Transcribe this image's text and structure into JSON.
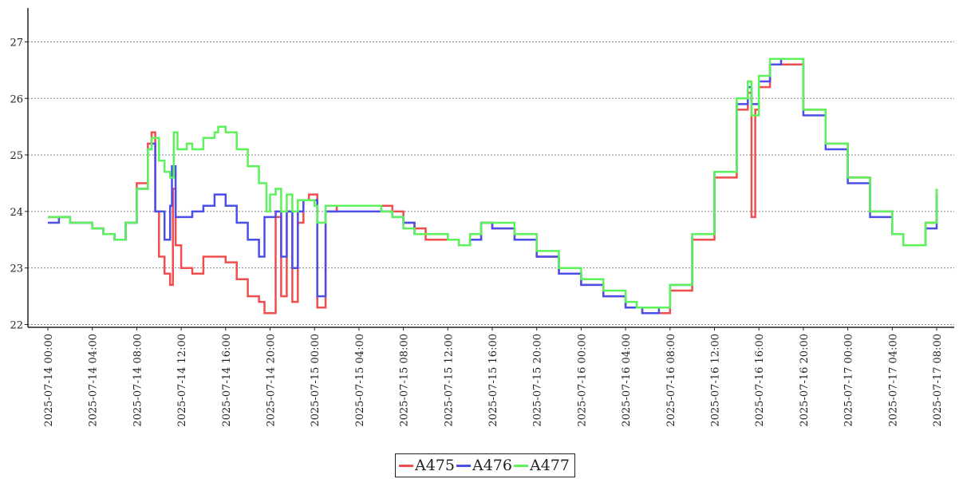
{
  "chart_data": {
    "type": "line",
    "title": "",
    "xlabel": "",
    "ylabel": "",
    "ylim": [
      21.95,
      27.6
    ],
    "y_ticks": [
      22,
      23,
      24,
      25,
      26,
      27
    ],
    "grid": "horizontal dotted",
    "legend_position": "bottom-center",
    "x_tick_labels": [
      "2025-07-14 00:00",
      "2025-07-14 04:00",
      "2025-07-14 08:00",
      "2025-07-14 12:00",
      "2025-07-14 16:00",
      "2025-07-14 20:00",
      "2025-07-15 00:00",
      "2025-07-15 04:00",
      "2025-07-15 08:00",
      "2025-07-15 12:00",
      "2025-07-15 16:00",
      "2025-07-15 20:00",
      "2025-07-16 00:00",
      "2025-07-16 04:00",
      "2025-07-16 08:00",
      "2025-07-16 12:00",
      "2025-07-16 16:00",
      "2025-07-16 20:00",
      "2025-07-17 00:00",
      "2025-07-17 04:00",
      "2025-07-17 08:00"
    ],
    "series": [
      {
        "name": "A475",
        "color": "#f04e4e",
        "points": [
          [
            "2025-07-14 00:00",
            23.9
          ],
          [
            "2025-07-14 02:00",
            23.8
          ],
          [
            "2025-07-14 04:00",
            23.7
          ],
          [
            "2025-07-14 05:00",
            23.6
          ],
          [
            "2025-07-14 06:00",
            23.5
          ],
          [
            "2025-07-14 07:00",
            23.8
          ],
          [
            "2025-07-14 08:00",
            24.5
          ],
          [
            "2025-07-14 09:00",
            25.2
          ],
          [
            "2025-07-14 09:20",
            25.4
          ],
          [
            "2025-07-14 09:40",
            24.0
          ],
          [
            "2025-07-14 10:00",
            23.2
          ],
          [
            "2025-07-14 10:30",
            22.9
          ],
          [
            "2025-07-14 11:00",
            22.7
          ],
          [
            "2025-07-14 11:15",
            24.4
          ],
          [
            "2025-07-14 11:30",
            23.4
          ],
          [
            "2025-07-14 12:00",
            23.0
          ],
          [
            "2025-07-14 13:00",
            22.9
          ],
          [
            "2025-07-14 14:00",
            23.2
          ],
          [
            "2025-07-14 16:00",
            23.1
          ],
          [
            "2025-07-14 17:00",
            22.8
          ],
          [
            "2025-07-14 18:00",
            22.5
          ],
          [
            "2025-07-14 19:00",
            22.4
          ],
          [
            "2025-07-14 19:30",
            22.2
          ],
          [
            "2025-07-14 20:30",
            23.9
          ],
          [
            "2025-07-14 21:00",
            22.5
          ],
          [
            "2025-07-14 21:30",
            24.0
          ],
          [
            "2025-07-14 22:00",
            22.4
          ],
          [
            "2025-07-14 22:30",
            23.8
          ],
          [
            "2025-07-14 23:00",
            24.2
          ],
          [
            "2025-07-14 23:30",
            24.3
          ],
          [
            "2025-07-15 00:00",
            24.3
          ],
          [
            "2025-07-15 00:15",
            22.3
          ],
          [
            "2025-07-15 01:00",
            24.0
          ],
          [
            "2025-07-15 02:00",
            24.1
          ],
          [
            "2025-07-15 06:00",
            24.1
          ],
          [
            "2025-07-15 07:00",
            24.0
          ],
          [
            "2025-07-15 08:00",
            23.8
          ],
          [
            "2025-07-15 09:00",
            23.7
          ],
          [
            "2025-07-15 10:00",
            23.5
          ],
          [
            "2025-07-15 12:00",
            23.5
          ],
          [
            "2025-07-15 13:00",
            23.4
          ],
          [
            "2025-07-15 14:00",
            23.5
          ],
          [
            "2025-07-15 15:00",
            23.8
          ],
          [
            "2025-07-15 16:00",
            23.7
          ],
          [
            "2025-07-15 18:00",
            23.5
          ],
          [
            "2025-07-15 20:00",
            23.2
          ],
          [
            "2025-07-15 22:00",
            22.9
          ],
          [
            "2025-07-16 00:00",
            22.7
          ],
          [
            "2025-07-16 02:00",
            22.5
          ],
          [
            "2025-07-16 04:00",
            22.3
          ],
          [
            "2025-07-16 05:00",
            22.3
          ],
          [
            "2025-07-16 05:30",
            22.2
          ],
          [
            "2025-07-16 07:00",
            22.2
          ],
          [
            "2025-07-16 08:00",
            22.6
          ],
          [
            "2025-07-16 10:00",
            23.5
          ],
          [
            "2025-07-16 12:00",
            24.6
          ],
          [
            "2025-07-16 14:00",
            25.8
          ],
          [
            "2025-07-16 15:00",
            26.1
          ],
          [
            "2025-07-16 15:20",
            23.9
          ],
          [
            "2025-07-16 15:40",
            25.8
          ],
          [
            "2025-07-16 16:00",
            26.2
          ],
          [
            "2025-07-16 17:00",
            26.6
          ],
          [
            "2025-07-16 18:00",
            26.6
          ],
          [
            "2025-07-16 20:00",
            25.8
          ],
          [
            "2025-07-16 22:00",
            25.2
          ],
          [
            "2025-07-17 00:00",
            24.6
          ],
          [
            "2025-07-17 02:00",
            24.0
          ],
          [
            "2025-07-17 04:00",
            23.6
          ],
          [
            "2025-07-17 05:00",
            23.4
          ],
          [
            "2025-07-17 06:00",
            23.4
          ],
          [
            "2025-07-17 07:00",
            23.8
          ],
          [
            "2025-07-17 08:00",
            24.4
          ]
        ]
      },
      {
        "name": "A476",
        "color": "#4b4fe8",
        "points": [
          [
            "2025-07-14 00:00",
            23.8
          ],
          [
            "2025-07-14 01:00",
            23.9
          ],
          [
            "2025-07-14 02:00",
            23.8
          ],
          [
            "2025-07-14 04:00",
            23.7
          ],
          [
            "2025-07-14 05:00",
            23.6
          ],
          [
            "2025-07-14 06:00",
            23.5
          ],
          [
            "2025-07-14 07:00",
            23.8
          ],
          [
            "2025-07-14 08:00",
            24.4
          ],
          [
            "2025-07-14 09:00",
            25.1
          ],
          [
            "2025-07-14 09:20",
            25.2
          ],
          [
            "2025-07-14 09:40",
            24.0
          ],
          [
            "2025-07-14 10:30",
            23.5
          ],
          [
            "2025-07-14 11:00",
            24.1
          ],
          [
            "2025-07-14 11:10",
            24.8
          ],
          [
            "2025-07-14 11:30",
            23.9
          ],
          [
            "2025-07-14 13:00",
            24.0
          ],
          [
            "2025-07-14 14:00",
            24.1
          ],
          [
            "2025-07-14 15:00",
            24.3
          ],
          [
            "2025-07-14 16:00",
            24.1
          ],
          [
            "2025-07-14 17:00",
            23.8
          ],
          [
            "2025-07-14 18:00",
            23.5
          ],
          [
            "2025-07-14 19:00",
            23.2
          ],
          [
            "2025-07-14 19:30",
            23.9
          ],
          [
            "2025-07-14 20:30",
            24.0
          ],
          [
            "2025-07-14 21:00",
            23.2
          ],
          [
            "2025-07-14 21:30",
            24.0
          ],
          [
            "2025-07-14 22:00",
            23.0
          ],
          [
            "2025-07-14 22:30",
            24.0
          ],
          [
            "2025-07-14 23:00",
            24.2
          ],
          [
            "2025-07-15 00:00",
            24.2
          ],
          [
            "2025-07-15 00:15",
            22.5
          ],
          [
            "2025-07-15 01:00",
            24.0
          ],
          [
            "2025-07-15 06:00",
            24.0
          ],
          [
            "2025-07-15 07:00",
            23.9
          ],
          [
            "2025-07-15 08:00",
            23.8
          ],
          [
            "2025-07-15 09:00",
            23.6
          ],
          [
            "2025-07-15 11:00",
            23.6
          ],
          [
            "2025-07-15 12:00",
            23.5
          ],
          [
            "2025-07-15 13:00",
            23.4
          ],
          [
            "2025-07-15 14:00",
            23.5
          ],
          [
            "2025-07-15 15:00",
            23.8
          ],
          [
            "2025-07-15 16:00",
            23.7
          ],
          [
            "2025-07-15 18:00",
            23.5
          ],
          [
            "2025-07-15 20:00",
            23.2
          ],
          [
            "2025-07-15 22:00",
            22.9
          ],
          [
            "2025-07-16 00:00",
            22.7
          ],
          [
            "2025-07-16 02:00",
            22.5
          ],
          [
            "2025-07-16 04:00",
            22.3
          ],
          [
            "2025-07-16 05:00",
            22.3
          ],
          [
            "2025-07-16 05:30",
            22.2
          ],
          [
            "2025-07-16 07:00",
            22.3
          ],
          [
            "2025-07-16 08:00",
            22.7
          ],
          [
            "2025-07-16 10:00",
            23.6
          ],
          [
            "2025-07-16 12:00",
            24.7
          ],
          [
            "2025-07-16 14:00",
            25.9
          ],
          [
            "2025-07-16 15:00",
            26.2
          ],
          [
            "2025-07-16 15:20",
            25.9
          ],
          [
            "2025-07-16 16:00",
            26.3
          ],
          [
            "2025-07-16 17:00",
            26.6
          ],
          [
            "2025-07-16 18:00",
            26.7
          ],
          [
            "2025-07-16 20:00",
            25.7
          ],
          [
            "2025-07-16 22:00",
            25.1
          ],
          [
            "2025-07-17 00:00",
            24.5
          ],
          [
            "2025-07-17 02:00",
            23.9
          ],
          [
            "2025-07-17 04:00",
            23.6
          ],
          [
            "2025-07-17 05:00",
            23.4
          ],
          [
            "2025-07-17 06:00",
            23.4
          ],
          [
            "2025-07-17 07:00",
            23.7
          ],
          [
            "2025-07-17 08:00",
            24.3
          ]
        ]
      },
      {
        "name": "A477",
        "color": "#5cf25c",
        "points": [
          [
            "2025-07-14 00:00",
            23.9
          ],
          [
            "2025-07-14 02:00",
            23.8
          ],
          [
            "2025-07-14 04:00",
            23.7
          ],
          [
            "2025-07-14 05:00",
            23.6
          ],
          [
            "2025-07-14 06:00",
            23.5
          ],
          [
            "2025-07-14 07:00",
            23.8
          ],
          [
            "2025-07-14 08:00",
            24.4
          ],
          [
            "2025-07-14 09:00",
            25.1
          ],
          [
            "2025-07-14 09:20",
            25.3
          ],
          [
            "2025-07-14 10:00",
            24.9
          ],
          [
            "2025-07-14 10:30",
            24.7
          ],
          [
            "2025-07-14 11:00",
            24.6
          ],
          [
            "2025-07-14 11:20",
            25.4
          ],
          [
            "2025-07-14 11:40",
            25.1
          ],
          [
            "2025-07-14 12:00",
            25.1
          ],
          [
            "2025-07-14 12:30",
            25.2
          ],
          [
            "2025-07-14 13:00",
            25.1
          ],
          [
            "2025-07-14 14:00",
            25.3
          ],
          [
            "2025-07-14 15:00",
            25.4
          ],
          [
            "2025-07-14 15:20",
            25.5
          ],
          [
            "2025-07-14 16:00",
            25.4
          ],
          [
            "2025-07-14 17:00",
            25.1
          ],
          [
            "2025-07-14 18:00",
            24.8
          ],
          [
            "2025-07-14 19:00",
            24.5
          ],
          [
            "2025-07-14 19:40",
            24.0
          ],
          [
            "2025-07-14 20:00",
            24.3
          ],
          [
            "2025-07-14 20:30",
            24.4
          ],
          [
            "2025-07-14 21:00",
            24.0
          ],
          [
            "2025-07-14 21:30",
            24.3
          ],
          [
            "2025-07-14 22:00",
            24.0
          ],
          [
            "2025-07-14 22:30",
            24.2
          ],
          [
            "2025-07-14 23:00",
            24.2
          ],
          [
            "2025-07-15 00:00",
            24.1
          ],
          [
            "2025-07-15 00:15",
            23.8
          ],
          [
            "2025-07-15 01:00",
            24.1
          ],
          [
            "2025-07-15 06:00",
            24.0
          ],
          [
            "2025-07-15 07:00",
            23.9
          ],
          [
            "2025-07-15 08:00",
            23.7
          ],
          [
            "2025-07-15 09:00",
            23.6
          ],
          [
            "2025-07-15 11:00",
            23.6
          ],
          [
            "2025-07-15 12:00",
            23.5
          ],
          [
            "2025-07-15 13:00",
            23.4
          ],
          [
            "2025-07-15 14:00",
            23.6
          ],
          [
            "2025-07-15 15:00",
            23.8
          ],
          [
            "2025-07-15 16:00",
            23.8
          ],
          [
            "2025-07-15 18:00",
            23.6
          ],
          [
            "2025-07-15 20:00",
            23.3
          ],
          [
            "2025-07-15 22:00",
            23.0
          ],
          [
            "2025-07-16 00:00",
            22.8
          ],
          [
            "2025-07-16 02:00",
            22.6
          ],
          [
            "2025-07-16 04:00",
            22.4
          ],
          [
            "2025-07-16 05:00",
            22.3
          ],
          [
            "2025-07-16 05:30",
            22.3
          ],
          [
            "2025-07-16 07:00",
            22.3
          ],
          [
            "2025-07-16 08:00",
            22.7
          ],
          [
            "2025-07-16 10:00",
            23.6
          ],
          [
            "2025-07-16 12:00",
            24.7
          ],
          [
            "2025-07-16 14:00",
            26.0
          ],
          [
            "2025-07-16 15:00",
            26.3
          ],
          [
            "2025-07-16 15:20",
            25.7
          ],
          [
            "2025-07-16 16:00",
            26.4
          ],
          [
            "2025-07-16 17:00",
            26.7
          ],
          [
            "2025-07-16 18:00",
            26.7
          ],
          [
            "2025-07-16 20:00",
            25.8
          ],
          [
            "2025-07-16 22:00",
            25.2
          ],
          [
            "2025-07-17 00:00",
            24.6
          ],
          [
            "2025-07-17 02:00",
            24.0
          ],
          [
            "2025-07-17 04:00",
            23.6
          ],
          [
            "2025-07-17 05:00",
            23.4
          ],
          [
            "2025-07-17 06:00",
            23.4
          ],
          [
            "2025-07-17 07:00",
            23.8
          ],
          [
            "2025-07-17 08:00",
            24.4
          ]
        ]
      }
    ]
  }
}
